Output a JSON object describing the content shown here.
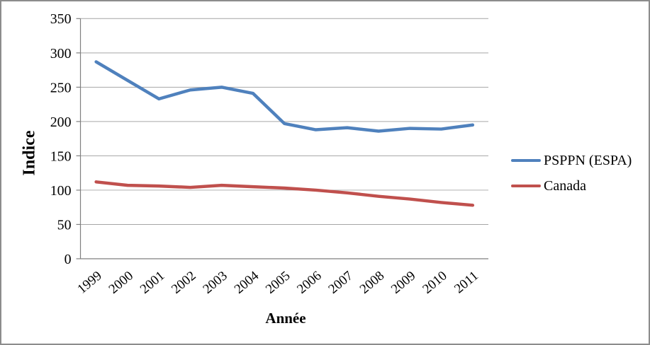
{
  "chart_data": {
    "type": "line",
    "title": "",
    "xlabel": "Année",
    "ylabel": "Indice",
    "categories": [
      "1999",
      "2000",
      "2001",
      "2002",
      "2003",
      "2004",
      "2005",
      "2006",
      "2007",
      "2008",
      "2009",
      "2010",
      "2011"
    ],
    "series": [
      {
        "id": "psppn-espa",
        "name": "PSPPN (ESPA)",
        "color": "#4F81BD",
        "values": [
          287,
          260,
          233,
          246,
          250,
          241,
          197,
          188,
          191,
          186,
          190,
          189,
          195
        ]
      },
      {
        "id": "canada",
        "name": "Canada",
        "color": "#C0504D",
        "values": [
          112,
          107,
          106,
          104,
          107,
          105,
          103,
          100,
          96,
          91,
          87,
          82,
          78
        ]
      }
    ],
    "ylim": [
      0,
      350
    ],
    "yticks": [
      0,
      50,
      100,
      150,
      200,
      250,
      300,
      350
    ],
    "grid": true,
    "legend_position": "right",
    "colors": {
      "grid": "#A6A6A6",
      "axis": "#7F7F7F",
      "frame": "#8C8C8C",
      "text": "#000000"
    }
  }
}
